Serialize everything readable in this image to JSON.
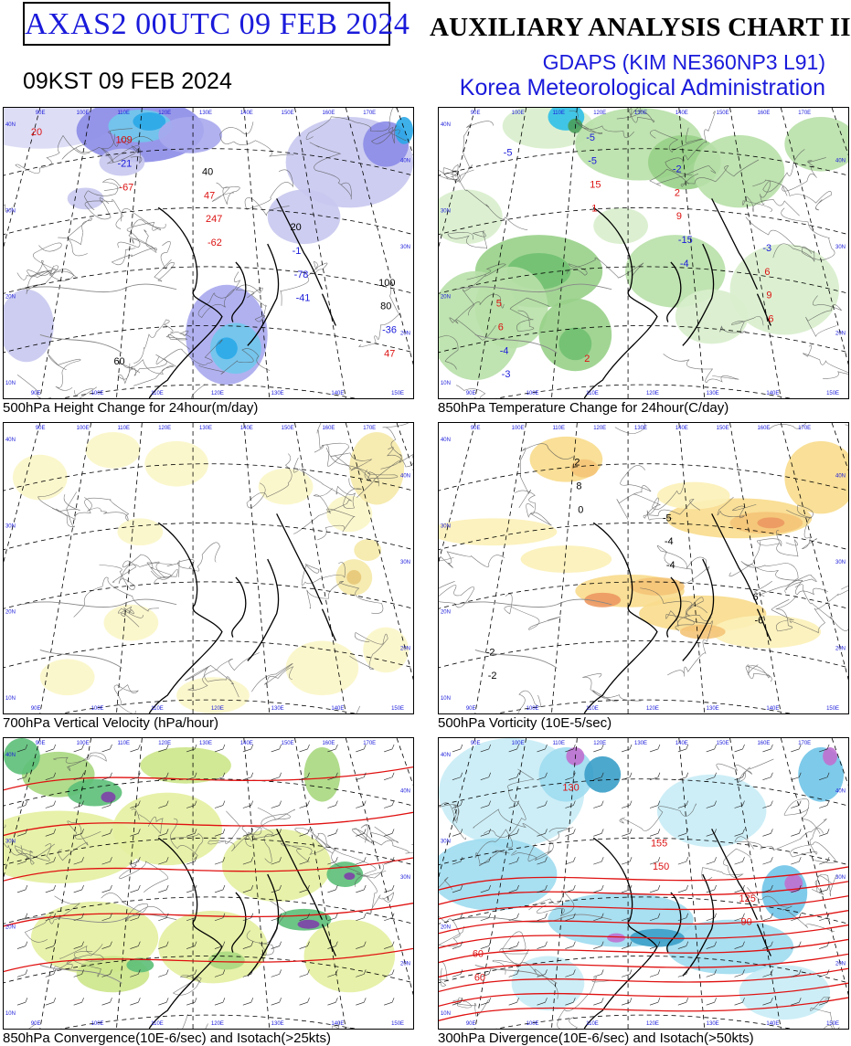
{
  "header": {
    "code": "AXAS2  00UTC 09 FEB 2024",
    "title": "AUXILIARY ANALYSIS CHART II",
    "model": "GDAPS (KIM NE360NP3 L91)",
    "agency": "Korea Meteorological Administration",
    "local_time": "09KST 09 FEB 2024"
  },
  "colors": {
    "header_blue": "#1a1adb",
    "label_red": "#dd1111",
    "label_blue": "#1a1adb"
  },
  "panels": [
    {
      "caption": "500hPa Height Change for 24hour(m/day)",
      "labels": [
        {
          "t": "20",
          "c": "red"
        },
        {
          "t": "-67",
          "c": "red"
        },
        {
          "t": "-62",
          "c": "red"
        },
        {
          "t": "-41",
          "c": "blue"
        },
        {
          "t": "47",
          "c": "red"
        },
        {
          "t": "-21",
          "c": "blue"
        },
        {
          "t": "247",
          "c": "red"
        },
        {
          "t": "-78",
          "c": "blue"
        },
        {
          "t": "-36",
          "c": "blue"
        },
        {
          "t": "109",
          "c": "red"
        },
        {
          "t": "47",
          "c": "red"
        },
        {
          "t": "-1",
          "c": "blue"
        },
        {
          "t": "80",
          "c": "black"
        },
        {
          "t": "60",
          "c": "black"
        },
        {
          "t": "40",
          "c": "black"
        },
        {
          "t": "20",
          "c": "black"
        },
        {
          "t": "100",
          "c": "black"
        }
      ]
    },
    {
      "caption": "850hPa Temperature Change for 24hour(C/day)",
      "labels": [
        {
          "t": "-5",
          "c": "blue"
        },
        {
          "t": "1",
          "c": "red"
        },
        {
          "t": "-4",
          "c": "blue"
        },
        {
          "t": "6",
          "c": "red"
        },
        {
          "t": "-3",
          "c": "blue"
        },
        {
          "t": "15",
          "c": "red"
        },
        {
          "t": "-15",
          "c": "blue"
        },
        {
          "t": "9",
          "c": "red"
        },
        {
          "t": "-4",
          "c": "blue"
        },
        {
          "t": "-5",
          "c": "blue"
        },
        {
          "t": "9",
          "c": "red"
        },
        {
          "t": "6",
          "c": "red"
        },
        {
          "t": "6",
          "c": "red"
        },
        {
          "t": "-5",
          "c": "blue"
        },
        {
          "t": "2",
          "c": "red"
        },
        {
          "t": "-3",
          "c": "blue"
        },
        {
          "t": "5",
          "c": "red"
        },
        {
          "t": "2",
          "c": "red"
        },
        {
          "t": "-2",
          "c": "blue"
        }
      ]
    },
    {
      "caption": "700hPa Vertical Velocity (hPa/hour)",
      "labels": []
    },
    {
      "caption": "500hPa Vorticity (10E-5/sec)",
      "labels": [
        {
          "t": "0",
          "c": "black"
        },
        {
          "t": "-4",
          "c": "black"
        },
        {
          "t": "-6",
          "c": "black"
        },
        {
          "t": "-2",
          "c": "black"
        },
        {
          "t": "8",
          "c": "black"
        },
        {
          "t": "-4",
          "c": "black"
        },
        {
          "t": "6",
          "c": "black"
        },
        {
          "t": "-2",
          "c": "black"
        },
        {
          "t": "2",
          "c": "black"
        },
        {
          "t": "-5",
          "c": "black"
        }
      ]
    },
    {
      "caption": "850hPa Convergence(10E-6/sec) and Isotach(>25kts)",
      "labels": []
    },
    {
      "caption": "300hPa Divergence(10E-6/sec) and Isotach(>50kts)",
      "labels": [
        {
          "t": "150",
          "c": "red"
        },
        {
          "t": "90",
          "c": "red"
        },
        {
          "t": "60",
          "c": "red"
        },
        {
          "t": "130",
          "c": "red"
        },
        {
          "t": "155",
          "c": "red"
        },
        {
          "t": "125",
          "c": "red"
        },
        {
          "t": "60",
          "c": "red"
        }
      ]
    }
  ],
  "grid": {
    "lon_labels": [
      "90E",
      "100E",
      "110E",
      "120E",
      "130E",
      "140E",
      "150E",
      "160E",
      "170E"
    ],
    "lat_labels": [
      "40N",
      "30N",
      "20N",
      "10N"
    ],
    "lon_labels_bottom": [
      "90E",
      "100E",
      "110E",
      "120E",
      "130E",
      "140E",
      "150E"
    ]
  }
}
